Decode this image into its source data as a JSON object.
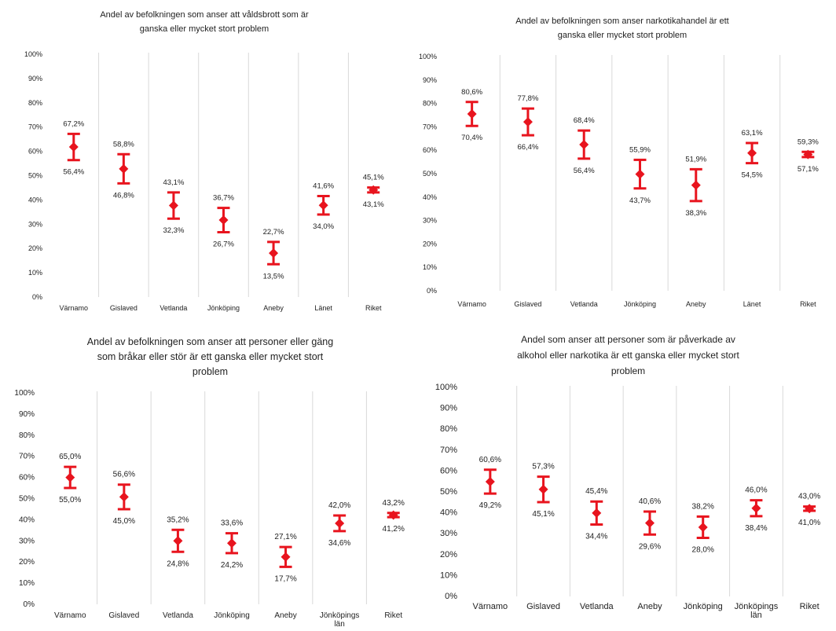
{
  "chart_data": [
    {
      "type": "error-bar",
      "title": [
        "Andel av befolkningen som anser att våldsbrott som är",
        "ganska eller mycket stort problem"
      ],
      "categories": [
        "Värnamo",
        "Gislaved",
        "Vetlanda",
        "Jönköping",
        "Aneby",
        "Länet",
        "Riket"
      ],
      "upper": [
        67.2,
        58.8,
        43.1,
        36.7,
        22.7,
        41.6,
        45.1
      ],
      "lower": [
        56.4,
        46.8,
        32.3,
        26.7,
        13.5,
        34.0,
        43.1
      ],
      "upper_labels": [
        "67,2%",
        "58,8%",
        "43,1%",
        "36,7%",
        "22,7%",
        "41,6%",
        "45,1%"
      ],
      "lower_labels": [
        "56,4%",
        "46,8%",
        "32,3%",
        "26,7%",
        "13,5%",
        "34,0%",
        "43,1%"
      ],
      "ylim": [
        0,
        100
      ],
      "yticks": [
        "0%",
        "10%",
        "20%",
        "30%",
        "40%",
        "50%",
        "60%",
        "70%",
        "80%",
        "90%",
        "100%"
      ],
      "color": "#e8141e",
      "grid": "vertical separators"
    },
    {
      "type": "error-bar",
      "title": [
        "Andel av befolkningen som anser narkotikahandel är ett",
        "ganska eller mycket stort problem"
      ],
      "categories": [
        "Värnamo",
        "Gislaved",
        "Vetlanda",
        "Jönköping",
        "Aneby",
        "Länet",
        "Riket"
      ],
      "upper": [
        80.6,
        77.8,
        68.4,
        55.9,
        51.9,
        63.1,
        59.3
      ],
      "lower": [
        70.4,
        66.4,
        56.4,
        43.7,
        38.3,
        54.5,
        57.1
      ],
      "upper_labels": [
        "80,6%",
        "77,8%",
        "68,4%",
        "55,9%",
        "51,9%",
        "63,1%",
        "59,3%"
      ],
      "lower_labels": [
        "70,4%",
        "66,4%",
        "56,4%",
        "43,7%",
        "38,3%",
        "54,5%",
        "57,1%"
      ],
      "ylim": [
        0,
        100
      ],
      "yticks": [
        "0%",
        "10%",
        "20%",
        "30%",
        "40%",
        "50%",
        "60%",
        "70%",
        "80%",
        "90%",
        "100%"
      ],
      "color": "#e8141e",
      "grid": "vertical separators"
    },
    {
      "type": "error-bar",
      "title": [
        "Andel av befolkningen som anser att personer eller gäng",
        "som bråkar eller stör är ett ganska eller mycket stort",
        "problem"
      ],
      "categories": [
        "Värnamo",
        "Gislaved",
        "Vetlanda",
        "Jönköping",
        "Aneby",
        "Jönköpings län",
        "Riket"
      ],
      "upper": [
        65.0,
        56.6,
        35.2,
        33.6,
        27.1,
        42.0,
        43.2
      ],
      "lower": [
        55.0,
        45.0,
        24.8,
        24.2,
        17.7,
        34.6,
        41.2
      ],
      "upper_labels": [
        "65,0%",
        "56,6%",
        "35,2%",
        "33,6%",
        "27,1%",
        "42,0%",
        "43,2%"
      ],
      "lower_labels": [
        "55,0%",
        "45,0%",
        "24,8%",
        "24,2%",
        "17,7%",
        "34,6%",
        "41,2%"
      ],
      "ylim": [
        0,
        100
      ],
      "yticks": [
        "0%",
        "10%",
        "20%",
        "30%",
        "40%",
        "50%",
        "60%",
        "70%",
        "80%",
        "90%",
        "100%"
      ],
      "color": "#e8141e",
      "grid": "vertical separators"
    },
    {
      "type": "error-bar",
      "title": [
        "Andel som anser att personer som är påverkade av",
        "alkohol eller narkotika är ett ganska eller mycket stort",
        "problem"
      ],
      "categories": [
        "Värnamo",
        "Gislaved",
        "Vetlanda",
        "Aneby",
        "Jönköping",
        "Jönköpings län",
        "Riket"
      ],
      "upper": [
        60.6,
        57.3,
        45.4,
        40.6,
        38.2,
        46.0,
        43.0
      ],
      "lower": [
        49.2,
        45.1,
        34.4,
        29.6,
        28.0,
        38.4,
        41.0
      ],
      "upper_labels": [
        "60,6%",
        "57,3%",
        "45,4%",
        "40,6%",
        "38,2%",
        "46,0%",
        "43,0%"
      ],
      "lower_labels": [
        "49,2%",
        "45,1%",
        "34,4%",
        "29,6%",
        "28,0%",
        "38,4%",
        "41,0%"
      ],
      "ylim": [
        0,
        100
      ],
      "yticks": [
        "0%",
        "10%",
        "20%",
        "30%",
        "40%",
        "50%",
        "60%",
        "70%",
        "80%",
        "90%",
        "100%"
      ],
      "color": "#e8141e",
      "grid": "vertical separators"
    }
  ]
}
